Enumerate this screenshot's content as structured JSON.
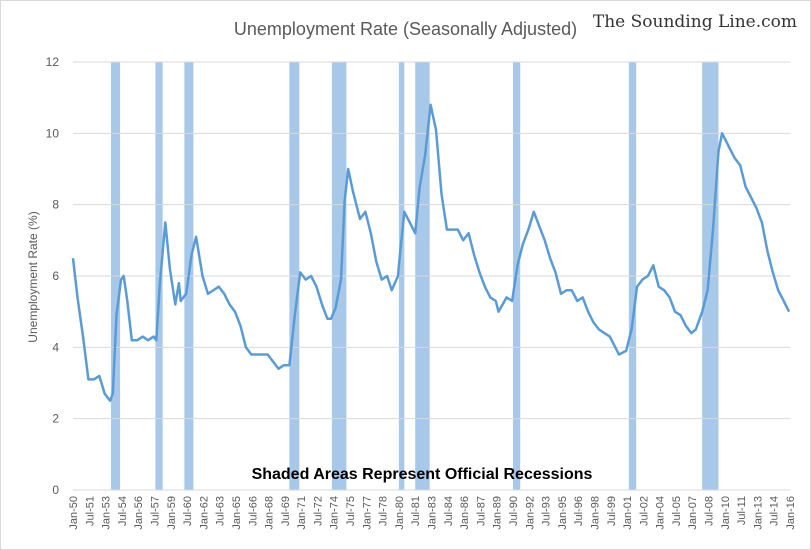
{
  "chart_data": {
    "type": "line",
    "title": "Unemployment Rate (Seasonally Adjusted)",
    "watermark": "The Sounding Line.com",
    "ylabel": "Unemployment Rate (%)",
    "xlabel": "",
    "ylim": [
      0,
      12
    ],
    "yticks": [
      0,
      2,
      4,
      6,
      8,
      10,
      12
    ],
    "grid": true,
    "annotation": "Shaded Areas Represent Official Recessions",
    "line_color": "#5b9bd5",
    "recession_color": "#a8c8ea",
    "grid_color": "#d9d9d9",
    "xlim": [
      "Jan-50",
      "Jan-16"
    ],
    "xticks": [
      "Jan-50",
      "Jul-51",
      "Jan-53",
      "Jul-54",
      "Jan-56",
      "Jul-57",
      "Jan-59",
      "Jul-60",
      "Jan-62",
      "Jul-63",
      "Jan-65",
      "Jul-66",
      "Jan-68",
      "Jul-69",
      "Jan-71",
      "Jul-72",
      "Jan-74",
      "Jul-75",
      "Jan-77",
      "Jul-78",
      "Jan-80",
      "Jul-81",
      "Jan-83",
      "Jul-84",
      "Jan-86",
      "Jul-87",
      "Jan-89",
      "Jul-90",
      "Jan-92",
      "Jul-93",
      "Jan-95",
      "Jul-96",
      "Jan-98",
      "Jul-99",
      "Jan-01",
      "Jul-02",
      "Jan-04",
      "Jul-05",
      "Jan-07",
      "Jul-08",
      "Jan-10",
      "Jul-11",
      "Jan-13",
      "Jul-14",
      "Jan-16"
    ],
    "recessions": [
      [
        "Jul-53",
        "May-54"
      ],
      [
        "Aug-57",
        "Apr-58"
      ],
      [
        "Apr-60",
        "Feb-61"
      ],
      [
        "Dec-69",
        "Nov-70"
      ],
      [
        "Nov-73",
        "Mar-75"
      ],
      [
        "Jan-80",
        "Jul-80"
      ],
      [
        "Jul-81",
        "Nov-82"
      ],
      [
        "Jul-90",
        "Mar-91"
      ],
      [
        "Mar-01",
        "Nov-01"
      ],
      [
        "Dec-07",
        "Jun-09"
      ]
    ],
    "series": [
      {
        "x": [
          "Jan-50",
          "Jun-50",
          "Dec-50",
          "Jun-51",
          "Dec-51",
          "Jun-52",
          "Dec-52",
          "Jun-53",
          "Sep-53",
          "Jan-54",
          "Jun-54",
          "Sep-54",
          "Jan-55",
          "Jun-55",
          "Dec-55",
          "Jun-56",
          "Dec-56",
          "Jun-57",
          "Sep-57",
          "Jan-58",
          "Jul-58",
          "Dec-58",
          "Jun-59",
          "Oct-59",
          "Dec-59",
          "Jun-60",
          "Dec-60",
          "May-61",
          "Dec-61",
          "Jun-62",
          "Dec-62",
          "Jun-63",
          "Dec-63",
          "Jun-64",
          "Dec-64",
          "Jun-65",
          "Dec-65",
          "Jun-66",
          "Dec-66",
          "Jun-67",
          "Dec-67",
          "Jun-68",
          "Dec-68",
          "Jun-69",
          "Dec-69",
          "Jun-70",
          "Dec-70",
          "Jun-71",
          "Dec-71",
          "Jun-72",
          "Dec-72",
          "Jun-73",
          "Oct-73",
          "Mar-74",
          "Sep-74",
          "Jan-75",
          "May-75",
          "Oct-75",
          "Jun-76",
          "Dec-76",
          "Jun-77",
          "Dec-77",
          "Jun-78",
          "Dec-78",
          "May-79",
          "Dec-79",
          "Jan-80",
          "Jul-80",
          "Jan-81",
          "Jul-81",
          "Dec-81",
          "Jun-82",
          "Dec-82",
          "Jun-83",
          "Dec-83",
          "Jun-84",
          "Dec-84",
          "Jun-85",
          "Dec-85",
          "Jun-86",
          "Dec-86",
          "Jun-87",
          "Dec-87",
          "Jun-88",
          "Dec-88",
          "Mar-89",
          "Dec-89",
          "Jun-90",
          "Dec-90",
          "Jun-91",
          "Dec-91",
          "Jun-92",
          "Dec-92",
          "Jun-93",
          "Dec-93",
          "Jun-94",
          "Dec-94",
          "Jun-95",
          "Dec-95",
          "Jun-96",
          "Dec-96",
          "Jun-97",
          "Dec-97",
          "Jun-98",
          "Dec-98",
          "Jun-99",
          "Dec-99",
          "Apr-00",
          "Dec-00",
          "Jun-01",
          "Dec-01",
          "Jun-02",
          "Dec-02",
          "Jun-03",
          "Dec-03",
          "Jun-04",
          "Dec-04",
          "Jun-05",
          "Dec-05",
          "Jun-06",
          "Dec-06",
          "May-07",
          "Dec-07",
          "Jun-08",
          "Dec-08",
          "Jun-09",
          "Oct-09",
          "Jun-10",
          "Dec-10",
          "Jun-11",
          "Dec-11",
          "Jun-12",
          "Dec-12",
          "Jun-13",
          "Dec-13",
          "Jun-14",
          "Dec-14",
          "Jun-15",
          "Dec-15"
        ],
        "values": [
          6.5,
          5.4,
          4.3,
          3.1,
          3.1,
          3.2,
          2.7,
          2.5,
          2.7,
          4.9,
          5.9,
          6.0,
          5.3,
          4.2,
          4.2,
          4.3,
          4.2,
          4.3,
          4.2,
          5.8,
          7.5,
          6.2,
          5.2,
          5.8,
          5.3,
          5.5,
          6.6,
          7.1,
          6.0,
          5.5,
          5.6,
          5.7,
          5.5,
          5.2,
          5.0,
          4.6,
          4.0,
          3.8,
          3.8,
          3.8,
          3.8,
          3.6,
          3.4,
          3.5,
          3.5,
          4.9,
          6.1,
          5.9,
          6.0,
          5.7,
          5.2,
          4.8,
          4.8,
          5.1,
          5.9,
          8.1,
          9.0,
          8.4,
          7.6,
          7.8,
          7.2,
          6.4,
          5.9,
          6.0,
          5.6,
          6.0,
          6.3,
          7.8,
          7.5,
          7.2,
          8.5,
          9.4,
          10.8,
          10.1,
          8.3,
          7.3,
          7.3,
          7.3,
          7.0,
          7.2,
          6.6,
          6.1,
          5.7,
          5.4,
          5.3,
          5.0,
          5.4,
          5.3,
          6.3,
          6.9,
          7.3,
          7.8,
          7.4,
          7.0,
          6.5,
          6.1,
          5.5,
          5.6,
          5.6,
          5.3,
          5.4,
          5.0,
          4.7,
          4.5,
          4.4,
          4.3,
          4.0,
          3.8,
          3.9,
          4.5,
          5.7,
          5.9,
          6.0,
          6.3,
          5.7,
          5.6,
          5.4,
          5.0,
          4.9,
          4.6,
          4.4,
          4.5,
          5.0,
          5.6,
          7.3,
          9.5,
          10.0,
          9.6,
          9.3,
          9.1,
          8.5,
          8.2,
          7.9,
          7.5,
          6.7,
          6.1,
          5.6,
          5.3,
          5.0
        ]
      }
    ]
  }
}
